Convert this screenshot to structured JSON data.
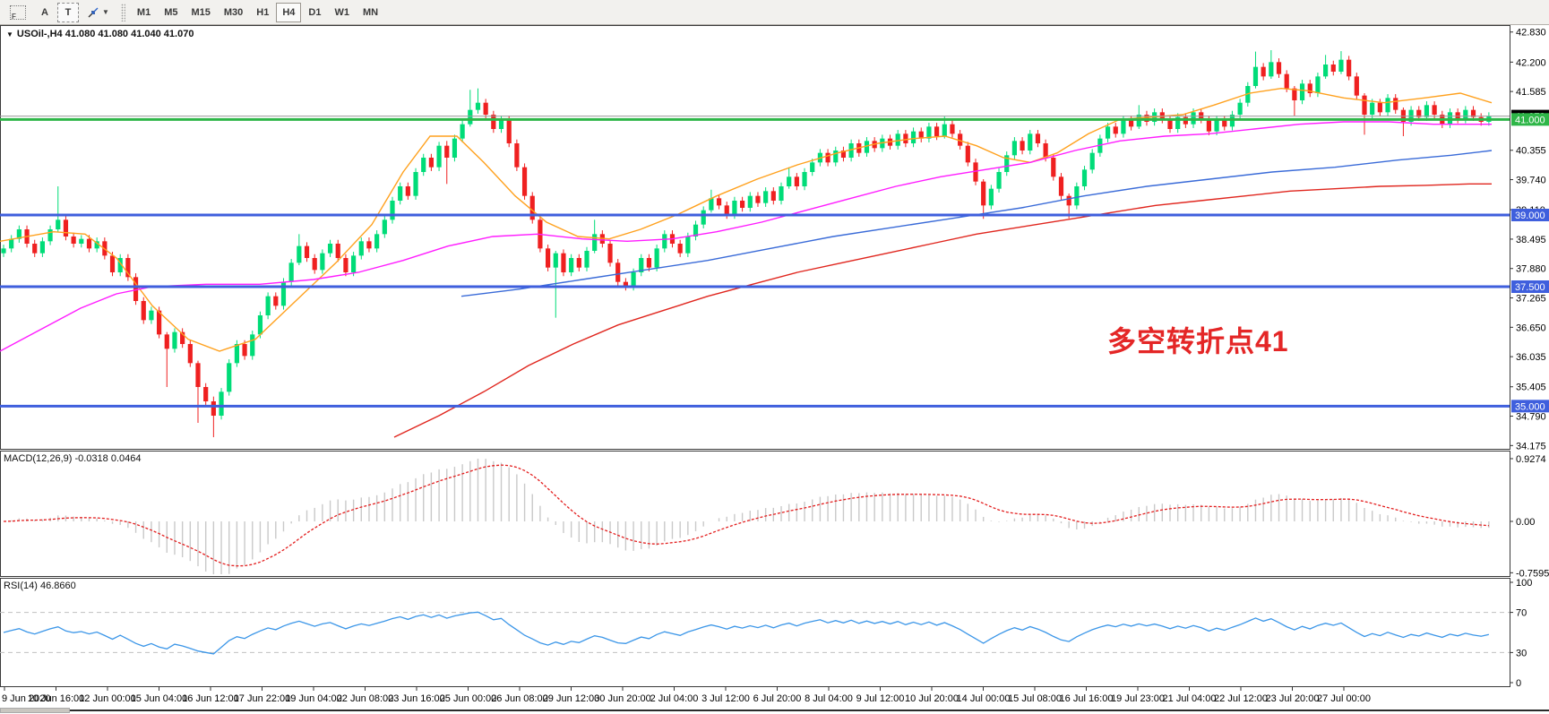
{
  "toolbar": {
    "icon_f": "F",
    "font_button": "A",
    "text_button": "T",
    "timeframes": [
      "M1",
      "M5",
      "M15",
      "M30",
      "H1",
      "H4",
      "D1",
      "W1",
      "MN"
    ],
    "active_timeframe": "H4"
  },
  "symbol_label": "USOil-,H4  41.080 41.080 41.040 41.070",
  "indicators": {
    "macd": {
      "label": "MACD(12,26,9) -0.0318 0.0464"
    },
    "rsi": {
      "label": "RSI(14) 46.8660"
    }
  },
  "annotation": {
    "text": "多空转折点41",
    "color": "#e42626"
  },
  "chart_data": {
    "type": "candlestick",
    "symbol": "USOil-",
    "timeframe": "H4",
    "ylim": [
      34.175,
      42.83
    ],
    "price_axis_ticks": [
      42.83,
      42.2,
      41.585,
      40.355,
      39.74,
      39.11,
      38.495,
      37.88,
      37.265,
      36.65,
      36.035,
      35.405,
      34.79,
      34.175
    ],
    "up_color": "#00dc78",
    "down_color": "#ef2020",
    "first_open": 38.2,
    "closes": [
      38.3,
      38.5,
      38.7,
      38.4,
      38.2,
      38.45,
      38.7,
      38.9,
      38.55,
      38.4,
      38.5,
      38.3,
      38.45,
      38.15,
      37.8,
      38.1,
      37.7,
      37.2,
      36.8,
      37.0,
      36.5,
      36.2,
      36.55,
      36.3,
      35.9,
      35.4,
      35.1,
      34.8,
      35.3,
      35.9,
      36.3,
      36.05,
      36.5,
      36.9,
      37.3,
      37.1,
      37.6,
      38.0,
      38.35,
      38.1,
      37.85,
      38.2,
      38.4,
      38.1,
      37.8,
      38.15,
      38.45,
      38.3,
      38.6,
      38.9,
      39.3,
      39.6,
      39.4,
      39.9,
      40.2,
      40.0,
      40.45,
      40.2,
      40.6,
      40.9,
      41.2,
      41.35,
      41.1,
      40.8,
      41.0,
      40.5,
      40.0,
      39.4,
      38.9,
      38.3,
      37.9,
      38.2,
      37.8,
      38.1,
      37.9,
      38.25,
      38.6,
      38.4,
      38.0,
      37.6,
      37.5,
      37.8,
      38.1,
      37.9,
      38.3,
      38.6,
      38.4,
      38.2,
      38.55,
      38.8,
      39.1,
      39.35,
      39.2,
      39.0,
      39.3,
      39.15,
      39.4,
      39.25,
      39.5,
      39.3,
      39.6,
      39.8,
      39.6,
      39.9,
      40.1,
      40.3,
      40.1,
      40.35,
      40.2,
      40.5,
      40.3,
      40.55,
      40.4,
      40.6,
      40.45,
      40.7,
      40.5,
      40.75,
      40.6,
      40.85,
      40.65,
      40.9,
      40.7,
      40.45,
      40.1,
      39.7,
      39.2,
      39.55,
      39.9,
      40.25,
      40.55,
      40.35,
      40.7,
      40.5,
      40.2,
      39.8,
      39.4,
      39.2,
      39.6,
      39.95,
      40.3,
      40.6,
      40.85,
      40.7,
      41.0,
      40.85,
      41.1,
      40.95,
      41.15,
      41.0,
      40.8,
      41.05,
      40.9,
      41.15,
      41.0,
      40.75,
      41.0,
      40.85,
      41.1,
      41.35,
      41.7,
      42.1,
      41.9,
      42.2,
      41.95,
      41.65,
      41.4,
      41.75,
      41.55,
      41.9,
      42.15,
      42.0,
      42.25,
      41.9,
      41.5,
      41.1,
      41.35,
      41.15,
      41.45,
      41.2,
      40.95,
      41.2,
      41.05,
      41.3,
      41.1,
      40.9,
      41.15,
      41.0,
      41.2,
      41.05,
      40.95,
      41.07
    ],
    "default_wick": 0.08,
    "extra_wicks": {
      "7": [
        0.7,
        0.05
      ],
      "21": [
        0.05,
        0.8
      ],
      "25": [
        0.05,
        0.75
      ],
      "27": [
        0.1,
        0.45
      ],
      "38": [
        0.25,
        0.05
      ],
      "57": [
        0.1,
        0.55
      ],
      "60": [
        0.42,
        0.05
      ],
      "61": [
        0.3,
        0.08
      ],
      "71": [
        0.05,
        1.05
      ],
      "76": [
        0.3,
        0.05
      ],
      "91": [
        0.18,
        0.05
      ],
      "101": [
        0.2,
        0.05
      ],
      "121": [
        0.16,
        0.05
      ],
      "126": [
        0.05,
        0.28
      ],
      "137": [
        0.05,
        0.27
      ],
      "146": [
        0.2,
        0.05
      ],
      "161": [
        0.32,
        0.05
      ],
      "163": [
        0.25,
        0.05
      ],
      "166": [
        0.05,
        0.32
      ],
      "170": [
        0.2,
        0.05
      ],
      "172": [
        0.18,
        0.05
      ],
      "175": [
        0.05,
        0.42
      ],
      "180": [
        0.05,
        0.3
      ]
    },
    "hlines": [
      {
        "price": 41.0,
        "label": "41.000",
        "color": "#2eb648",
        "width": 3
      },
      {
        "price": 39.0,
        "label": "39.000",
        "color": "#3f5fdd",
        "width": 3
      },
      {
        "price": 37.5,
        "label": "37.500",
        "color": "#3f5fdd",
        "width": 3
      },
      {
        "price": 35.0,
        "label": "35.000",
        "color": "#3f5fdd",
        "width": 3
      }
    ],
    "current_price": {
      "value": 41.07,
      "label": "41.070",
      "line_color": "#9a9a9a",
      "badge_bg": "#000000"
    },
    "moving_averages": [
      {
        "name": "ma-fast-orange",
        "color": "#ffa11e",
        "points": [
          [
            0,
            38.45
          ],
          [
            60,
            38.65
          ],
          [
            95,
            38.6
          ],
          [
            130,
            38.1
          ],
          [
            170,
            37.1
          ],
          [
            210,
            36.4
          ],
          [
            245,
            36.15
          ],
          [
            285,
            36.4
          ],
          [
            330,
            37.2
          ],
          [
            375,
            38.0
          ],
          [
            415,
            38.8
          ],
          [
            450,
            39.9
          ],
          [
            480,
            40.65
          ],
          [
            510,
            40.65
          ],
          [
            540,
            40.1
          ],
          [
            575,
            39.4
          ],
          [
            610,
            38.85
          ],
          [
            645,
            38.55
          ],
          [
            680,
            38.5
          ],
          [
            715,
            38.7
          ],
          [
            755,
            39.0
          ],
          [
            800,
            39.4
          ],
          [
            845,
            39.75
          ],
          [
            890,
            40.05
          ],
          [
            935,
            40.3
          ],
          [
            980,
            40.5
          ],
          [
            1020,
            40.6
          ],
          [
            1055,
            40.65
          ],
          [
            1090,
            40.45
          ],
          [
            1120,
            40.2
          ],
          [
            1150,
            40.1
          ],
          [
            1180,
            40.3
          ],
          [
            1215,
            40.7
          ],
          [
            1250,
            41.0
          ],
          [
            1285,
            41.05
          ],
          [
            1320,
            41.1
          ],
          [
            1355,
            41.3
          ],
          [
            1395,
            41.55
          ],
          [
            1430,
            41.65
          ],
          [
            1460,
            41.6
          ],
          [
            1500,
            41.45
          ],
          [
            1545,
            41.35
          ],
          [
            1590,
            41.45
          ],
          [
            1630,
            41.55
          ],
          [
            1665,
            41.35
          ]
        ]
      },
      {
        "name": "ma-mid-magenta",
        "color": "#ff1cff",
        "points": [
          [
            0,
            36.15
          ],
          [
            45,
            36.6
          ],
          [
            90,
            37.05
          ],
          [
            130,
            37.35
          ],
          [
            170,
            37.5
          ],
          [
            230,
            37.55
          ],
          [
            290,
            37.55
          ],
          [
            350,
            37.65
          ],
          [
            400,
            37.8
          ],
          [
            450,
            38.05
          ],
          [
            500,
            38.35
          ],
          [
            550,
            38.55
          ],
          [
            600,
            38.6
          ],
          [
            650,
            38.5
          ],
          [
            700,
            38.45
          ],
          [
            750,
            38.5
          ],
          [
            800,
            38.65
          ],
          [
            850,
            38.85
          ],
          [
            900,
            39.1
          ],
          [
            950,
            39.35
          ],
          [
            1000,
            39.6
          ],
          [
            1050,
            39.8
          ],
          [
            1100,
            39.95
          ],
          [
            1150,
            40.1
          ],
          [
            1200,
            40.35
          ],
          [
            1250,
            40.55
          ],
          [
            1300,
            40.65
          ],
          [
            1350,
            40.7
          ],
          [
            1400,
            40.8
          ],
          [
            1450,
            40.9
          ],
          [
            1500,
            40.95
          ],
          [
            1550,
            40.95
          ],
          [
            1600,
            40.9
          ],
          [
            1640,
            40.9
          ],
          [
            1665,
            40.9
          ]
        ]
      },
      {
        "name": "ma-slow-blue",
        "color": "#3a6bd8",
        "points": [
          [
            515,
            37.3
          ],
          [
            580,
            37.45
          ],
          [
            650,
            37.65
          ],
          [
            720,
            37.85
          ],
          [
            790,
            38.05
          ],
          [
            860,
            38.3
          ],
          [
            930,
            38.55
          ],
          [
            1000,
            38.75
          ],
          [
            1070,
            38.95
          ],
          [
            1140,
            39.15
          ],
          [
            1210,
            39.4
          ],
          [
            1280,
            39.6
          ],
          [
            1350,
            39.75
          ],
          [
            1420,
            39.9
          ],
          [
            1490,
            40.0
          ],
          [
            1560,
            40.15
          ],
          [
            1620,
            40.25
          ],
          [
            1665,
            40.35
          ]
        ]
      },
      {
        "name": "ma-slowest-red",
        "color": "#e0261e",
        "points": [
          [
            440,
            34.35
          ],
          [
            490,
            34.8
          ],
          [
            540,
            35.3
          ],
          [
            590,
            35.85
          ],
          [
            640,
            36.3
          ],
          [
            690,
            36.7
          ],
          [
            740,
            37.0
          ],
          [
            790,
            37.3
          ],
          [
            840,
            37.55
          ],
          [
            890,
            37.8
          ],
          [
            940,
            38.0
          ],
          [
            990,
            38.2
          ],
          [
            1040,
            38.4
          ],
          [
            1090,
            38.6
          ],
          [
            1140,
            38.75
          ],
          [
            1190,
            38.9
          ],
          [
            1240,
            39.05
          ],
          [
            1290,
            39.2
          ],
          [
            1340,
            39.3
          ],
          [
            1390,
            39.4
          ],
          [
            1440,
            39.5
          ],
          [
            1490,
            39.55
          ],
          [
            1540,
            39.6
          ],
          [
            1590,
            39.62
          ],
          [
            1640,
            39.65
          ],
          [
            1665,
            39.65
          ]
        ]
      }
    ],
    "macd": {
      "params": [
        12,
        26,
        9
      ],
      "value": -0.0318,
      "signal_value": 0.0464,
      "axis_ticks": [
        "0.9274",
        "0.00",
        "-0.7595"
      ],
      "axis_values": [
        0.9274,
        0,
        -0.7595
      ],
      "bar_color": "#c9c9c9",
      "signal_color": "#e31e1e"
    },
    "rsi": {
      "period": 14,
      "value": 46.866,
      "levels": [
        70,
        30
      ],
      "axis_ticks": [
        "100",
        "70",
        "30",
        "0"
      ],
      "axis_values": [
        100,
        70,
        30,
        0
      ],
      "line_color": "#3b96e8",
      "level_color": "#c0c0c0"
    },
    "time_labels": [
      "9 Jun 2020",
      "10 Jun 16:00",
      "12 Jun 00:00",
      "15 Jun 04:00",
      "16 Jun 12:00",
      "17 Jun 22:00",
      "19 Jun 04:00",
      "22 Jun 08:00",
      "23 Jun 16:00",
      "25 Jun 00:00",
      "26 Jun 08:00",
      "29 Jun 12:00",
      "30 Jun 20:00",
      "2 Jul 04:00",
      "3 Jul 12:00",
      "6 Jul 20:00",
      "8 Jul 04:00",
      "9 Jul 12:00",
      "10 Jul 20:00",
      "14 Jul 00:00",
      "15 Jul 08:00",
      "16 Jul 16:00",
      "19 Jul 23:00",
      "21 Jul 04:00",
      "22 Jul 12:00",
      "23 Jul 20:00",
      "27 Jul 00:00"
    ]
  }
}
